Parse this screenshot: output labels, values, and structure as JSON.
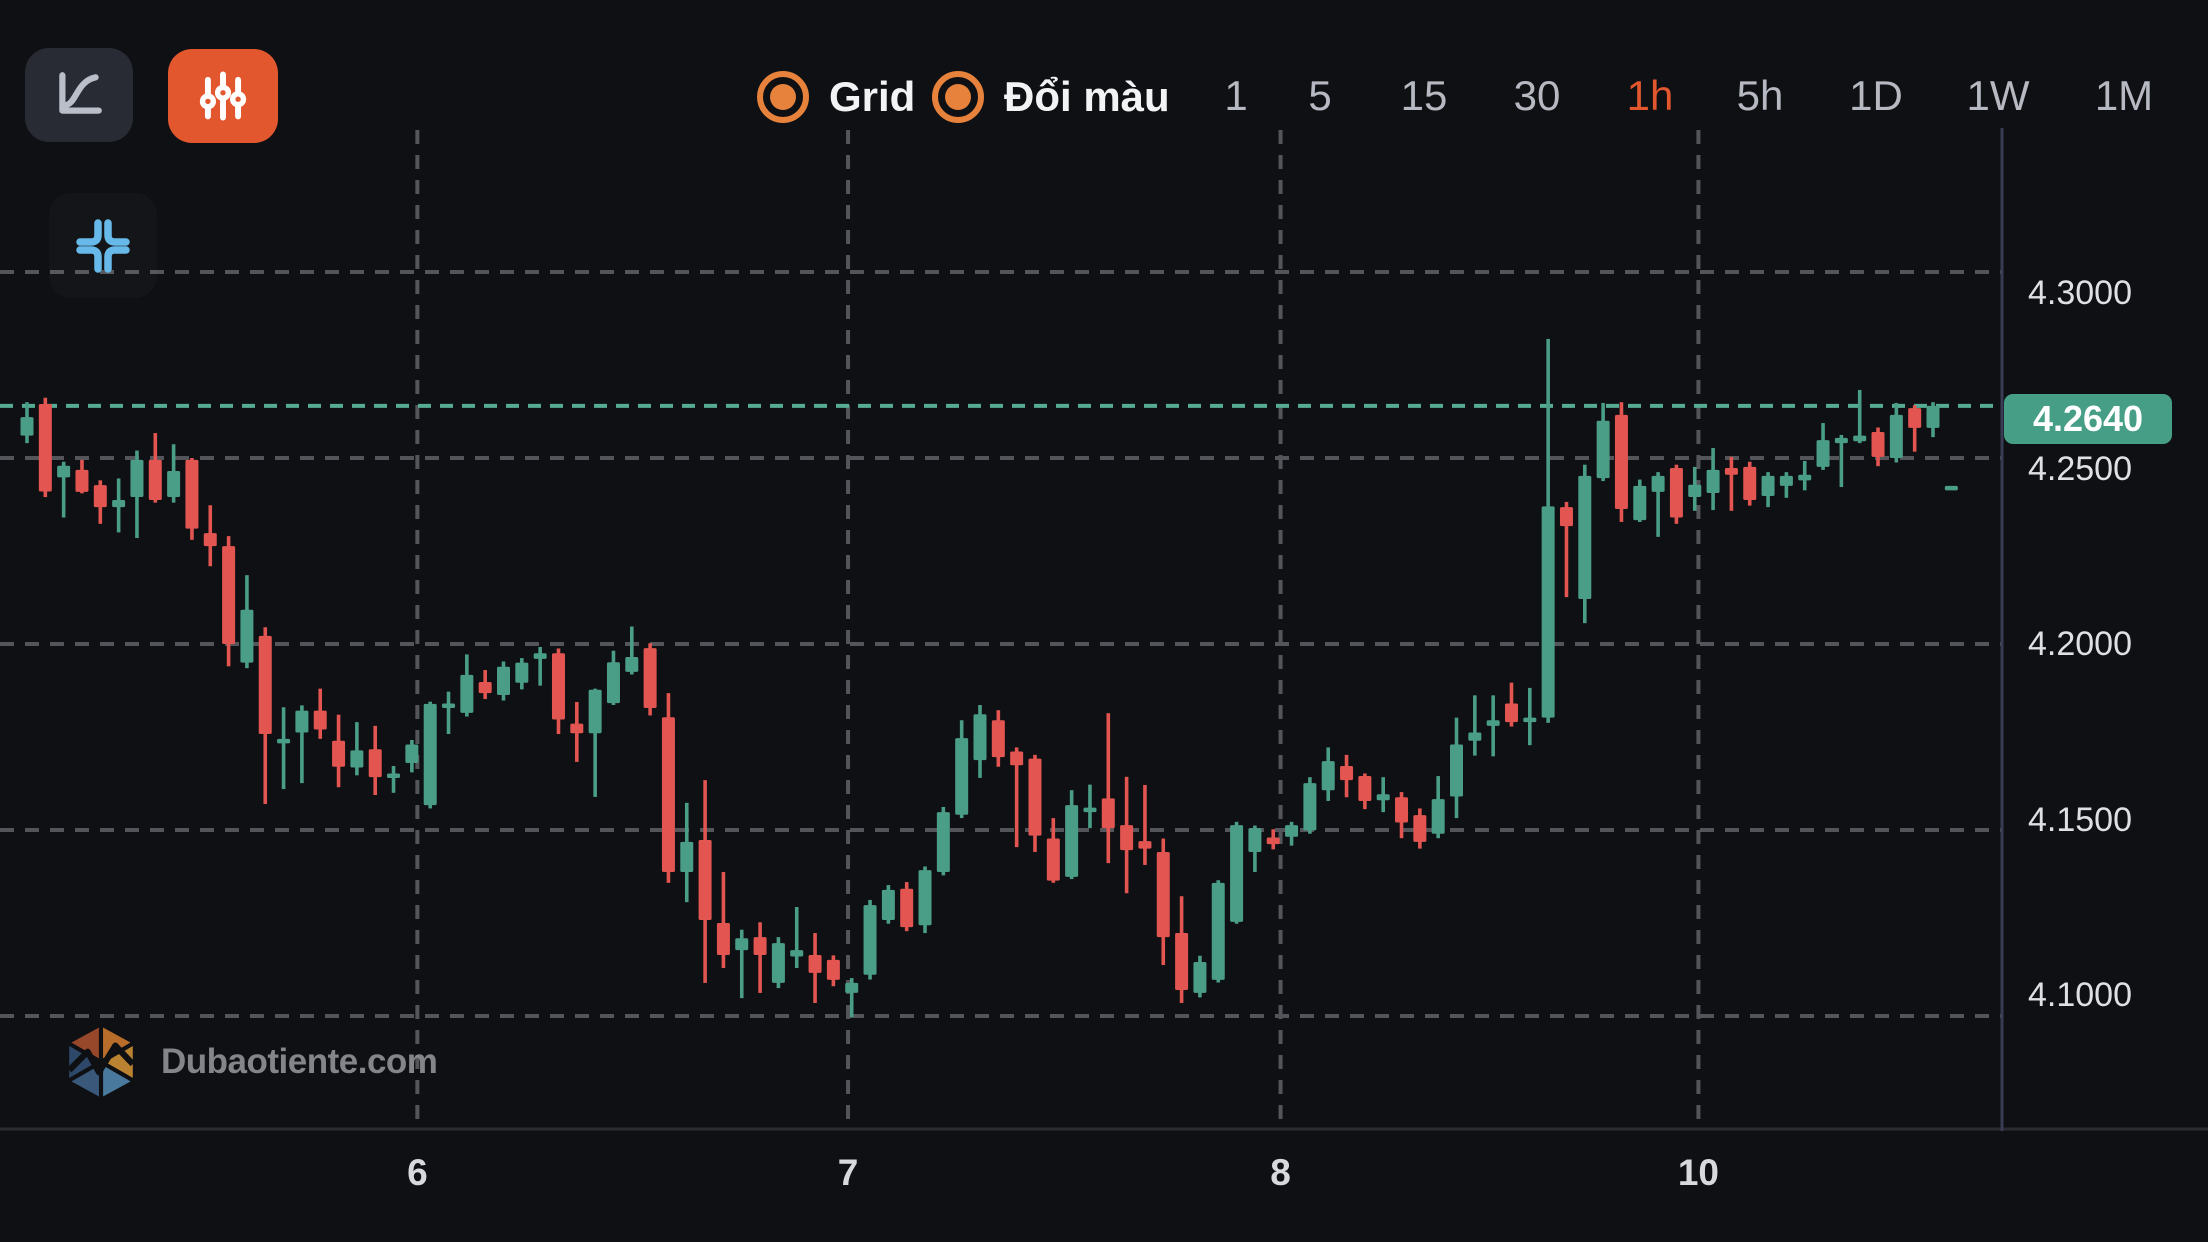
{
  "toolbar": {
    "chart_type_button": {
      "icon": "line-chart"
    },
    "indicator_button": {
      "icon": "candlestick-sliders"
    },
    "grid_toggle": {
      "label": "Grid",
      "checked": true
    },
    "color_toggle": {
      "label": "Đổi màu",
      "checked": true
    },
    "timeframes": {
      "options": [
        "1",
        "5",
        "15",
        "30",
        "1h",
        "5h",
        "1D",
        "1W",
        "1M"
      ],
      "active": "1h"
    }
  },
  "chart_controls": {
    "collapse_button": {
      "icon": "collapse-corners"
    }
  },
  "watermark": {
    "text": "Dubaotiente.com"
  },
  "colors": {
    "background": "#0f1013",
    "up": "#4a9d87",
    "down": "#e25551",
    "accent_orange": "#e2572e",
    "toggle_orange": "#e6823b",
    "price_line": "#55ab93",
    "badge_bg": "#479e87",
    "grid": "#53555b",
    "icon_blue": "#66b9e8"
  },
  "chart_data": {
    "type": "candlestick",
    "timeframe": "1h",
    "grid": true,
    "legend_position": "none",
    "y_axis": {
      "side": "right",
      "labels": [
        "4.3000",
        "4.2500",
        "4.2000",
        "4.1500",
        "4.1000"
      ],
      "values": [
        4.3,
        4.25,
        4.2,
        4.15,
        4.1
      ],
      "range": [
        4.065,
        4.335
      ]
    },
    "x_axis": {
      "ticks": [
        {
          "label": "6",
          "index": 21.3
        },
        {
          "label": "7",
          "index": 44.8
        },
        {
          "label": "8",
          "index": 68.4
        },
        {
          "label": "10",
          "index": 91.2
        }
      ]
    },
    "last_price": 4.264,
    "last_price_label": "4.2640",
    "candles": [
      [
        4.256,
        4.265,
        4.254,
        4.261
      ],
      [
        4.2645,
        4.2662,
        4.2395,
        4.241
      ],
      [
        4.2448,
        4.249,
        4.234,
        4.2479
      ],
      [
        4.2468,
        4.2495,
        4.2405,
        4.2409
      ],
      [
        4.2427,
        4.244,
        4.2323,
        4.2368
      ],
      [
        4.2368,
        4.2445,
        4.23,
        4.2387
      ],
      [
        4.2395,
        4.252,
        4.2285,
        4.2495
      ],
      [
        4.2495,
        4.2567,
        4.238,
        4.2387
      ],
      [
        4.2395,
        4.2537,
        4.238,
        4.2465
      ],
      [
        4.2495,
        4.25,
        4.228,
        4.231
      ],
      [
        4.2298,
        4.2373,
        4.2209,
        4.2263
      ],
      [
        4.2263,
        4.229,
        4.194,
        4.2
      ],
      [
        4.195,
        4.2185,
        4.1935,
        4.2092
      ],
      [
        4.2022,
        4.2045,
        4.157,
        4.1758
      ],
      [
        4.174,
        4.183,
        4.161,
        4.1745
      ],
      [
        4.1762,
        4.1835,
        4.1626,
        4.1821
      ],
      [
        4.1821,
        4.188,
        4.1745,
        4.177
      ],
      [
        4.174,
        4.181,
        4.1615,
        4.167
      ],
      [
        4.1668,
        4.179,
        4.1647,
        4.1714
      ],
      [
        4.1717,
        4.178,
        4.1594,
        4.1642
      ],
      [
        4.1647,
        4.1672,
        4.16,
        4.1652
      ],
      [
        4.168,
        4.1742,
        4.1655,
        4.173
      ],
      [
        4.1567,
        4.1845,
        4.1558,
        4.1839
      ],
      [
        4.183,
        4.1872,
        4.1758,
        4.184
      ],
      [
        4.1815,
        4.1972,
        4.1805,
        4.1917
      ],
      [
        4.1898,
        4.193,
        4.1852,
        4.1868
      ],
      [
        4.1863,
        4.1953,
        4.1848,
        4.1939
      ],
      [
        4.1896,
        4.1962,
        4.1878,
        4.195
      ],
      [
        4.196,
        4.1992,
        4.1888,
        4.1975
      ],
      [
        4.1975,
        4.1988,
        4.1758,
        4.1797
      ],
      [
        4.1786,
        4.1844,
        4.1683,
        4.176
      ],
      [
        4.176,
        4.188,
        4.1589,
        4.1877
      ],
      [
        4.1841,
        4.1982,
        4.1836,
        4.1951
      ],
      [
        4.1925,
        4.2047,
        4.1918,
        4.1965
      ],
      [
        4.1989,
        4.2002,
        4.1808,
        4.1828
      ],
      [
        4.1803,
        4.1868,
        4.1358,
        4.1387
      ],
      [
        4.1387,
        4.1573,
        4.1306,
        4.1468
      ],
      [
        4.1473,
        4.1634,
        4.1089,
        4.1258
      ],
      [
        4.125,
        4.1387,
        4.1129,
        4.1164
      ],
      [
        4.1177,
        4.1232,
        4.1048,
        4.1209
      ],
      [
        4.1212,
        4.1252,
        4.1062,
        4.1164
      ],
      [
        4.1089,
        4.1212,
        4.1075,
        4.1196
      ],
      [
        4.116,
        4.1293,
        4.1129,
        4.1177
      ],
      [
        4.1164,
        4.1223,
        4.1035,
        4.1116
      ],
      [
        4.1151,
        4.1163,
        4.108,
        4.1097
      ],
      [
        4.1062,
        4.1102,
        4.0997,
        4.1089
      ],
      [
        4.1111,
        4.1312,
        4.1098,
        4.1298
      ],
      [
        4.1258,
        4.1352,
        4.1248,
        4.1339
      ],
      [
        4.1342,
        4.136,
        4.1228,
        4.1239
      ],
      [
        4.1244,
        4.1402,
        4.1223,
        4.1392
      ],
      [
        4.1387,
        4.1562,
        4.1378,
        4.1548
      ],
      [
        4.1541,
        4.1795,
        4.1532,
        4.1747
      ],
      [
        4.1688,
        4.1836,
        4.164,
        4.1811
      ],
      [
        4.1795,
        4.1822,
        4.167,
        4.1696
      ],
      [
        4.1711,
        4.1722,
        4.1454,
        4.1674
      ],
      [
        4.1692,
        4.1702,
        4.1441,
        4.1485
      ],
      [
        4.1477,
        4.1532,
        4.1358,
        4.1364
      ],
      [
        4.1374,
        4.1607,
        4.1368,
        4.1567
      ],
      [
        4.155,
        4.1622,
        4.1505,
        4.156
      ],
      [
        4.1585,
        4.1814,
        4.1411,
        4.1505
      ],
      [
        4.1513,
        4.1643,
        4.133,
        4.1446
      ],
      [
        4.147,
        4.1621,
        4.1406,
        4.145
      ],
      [
        4.1441,
        4.1477,
        4.1137,
        4.1212
      ],
      [
        4.1223,
        4.1322,
        4.1035,
        4.107
      ],
      [
        4.1062,
        4.1162,
        4.105,
        4.1145
      ],
      [
        4.1097,
        4.1365,
        4.109,
        4.1358
      ],
      [
        4.1253,
        4.1522,
        4.1248,
        4.1513
      ],
      [
        4.1441,
        4.1512,
        4.1387,
        4.1505
      ],
      [
        4.148,
        4.1502,
        4.1448,
        4.1462
      ],
      [
        4.1482,
        4.1522,
        4.1458,
        4.1513
      ],
      [
        4.1499,
        4.1642,
        4.149,
        4.1626
      ],
      [
        4.1607,
        4.1722,
        4.1578,
        4.1685
      ],
      [
        4.1672,
        4.1702,
        4.1588,
        4.1634
      ],
      [
        4.1645,
        4.1652,
        4.1556,
        4.1578
      ],
      [
        4.158,
        4.1642,
        4.1548,
        4.1596
      ],
      [
        4.1588,
        4.1602,
        4.1478,
        4.152
      ],
      [
        4.154,
        4.1558,
        4.145,
        4.1468
      ],
      [
        4.149,
        4.1645,
        4.1478,
        4.1583
      ],
      [
        4.159,
        4.1802,
        4.1532,
        4.173
      ],
      [
        4.174,
        4.1862,
        4.17,
        4.1762
      ],
      [
        4.178,
        4.1862,
        4.1698,
        4.1795
      ],
      [
        4.184,
        4.1896,
        4.1778,
        4.179
      ],
      [
        4.18,
        4.1882,
        4.1728,
        4.1802
      ],
      [
        4.1802,
        4.282,
        4.1788,
        4.237
      ],
      [
        4.2368,
        4.2382,
        4.2126,
        4.2317
      ],
      [
        4.2121,
        4.2482,
        4.2056,
        4.2452
      ],
      [
        4.2446,
        4.2648,
        4.2438,
        4.26
      ],
      [
        4.2616,
        4.265,
        4.2328,
        4.2363
      ],
      [
        4.2333,
        4.2442,
        4.2328,
        4.2425
      ],
      [
        4.2409,
        4.2462,
        4.2288,
        4.2452
      ],
      [
        4.2473,
        4.2482,
        4.2323,
        4.234
      ],
      [
        4.2395,
        4.2476,
        4.2358,
        4.2428
      ],
      [
        4.2406,
        4.2527,
        4.236,
        4.2468
      ],
      [
        4.2473,
        4.2503,
        4.2358,
        4.2455
      ],
      [
        4.2476,
        4.249,
        4.2372,
        4.2387
      ],
      [
        4.2398,
        4.2462,
        4.2368,
        4.2452
      ],
      [
        4.2425,
        4.2462,
        4.2393,
        4.2452
      ],
      [
        4.244,
        4.2492,
        4.2413,
        4.2455
      ],
      [
        4.2476,
        4.2594,
        4.2468,
        4.2548
      ],
      [
        4.254,
        4.2562,
        4.2422,
        4.2554
      ],
      [
        4.2545,
        4.2683,
        4.254,
        4.256
      ],
      [
        4.257,
        4.2582,
        4.2478,
        4.2503
      ],
      [
        4.25,
        4.2648,
        4.2488,
        4.2616
      ],
      [
        4.2634,
        4.2642,
        4.2517,
        4.2581
      ],
      [
        4.2581,
        4.265,
        4.2556,
        4.264
      ],
      [
        4.2425,
        4.2425,
        4.2425,
        4.2425
      ]
    ]
  }
}
